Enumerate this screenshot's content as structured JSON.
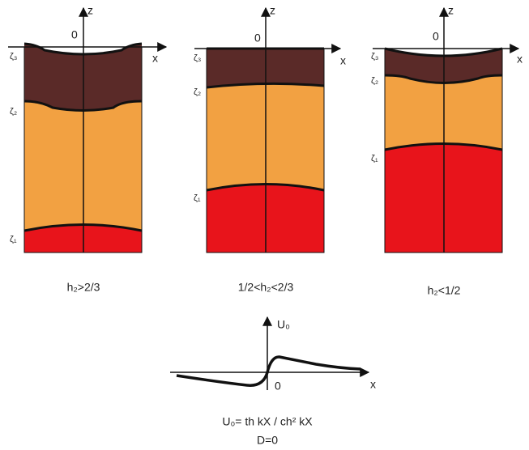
{
  "panels": [
    {
      "z_label": "z",
      "origin_label": "0",
      "x_label": "x",
      "zeta3": "ζ₃",
      "zeta2": "ζ₂",
      "zeta1": "ζ₁",
      "caption": "h₂>2/3"
    },
    {
      "z_label": "z",
      "origin_label": "0",
      "x_label": "x",
      "zeta3": "ζ₃",
      "zeta2": "ζ₂",
      "zeta1": "ζ₁",
      "caption": "1/2<h₂<2/3"
    },
    {
      "z_label": "z",
      "origin_label": "0",
      "x_label": "x",
      "zeta3": "ζ₃",
      "zeta2": "ζ₂",
      "zeta1": "ζ₁",
      "caption": "h₂<1/2"
    }
  ],
  "profile": {
    "y_label": "U₀",
    "origin_label": "0",
    "x_label": "x",
    "formula": "U₀= th kX / ch² kX",
    "condition": "D=0"
  }
}
